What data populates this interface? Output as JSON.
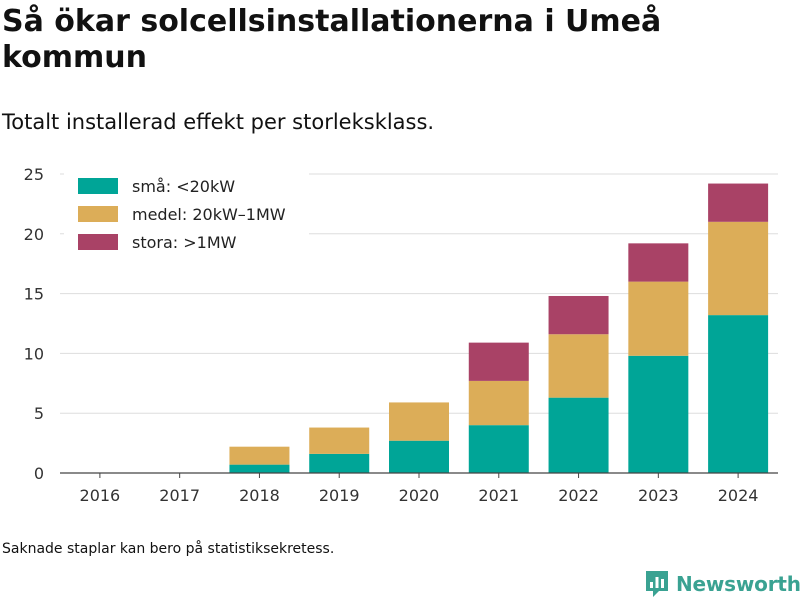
{
  "header": {
    "title": "Så ökar solcellsinstallationerna i Umeå kommun",
    "subtitle": "Totalt installerad effekt per storleksklass."
  },
  "footer": {
    "note": "Saknade staplar kan bero på statistiksekretess.",
    "brand": "Newsworthy",
    "brand_color": "#3aa292",
    "brand_icon": "bar-chart-logo-icon"
  },
  "chart_data": {
    "type": "bar",
    "stacked": true,
    "categories": [
      "2016",
      "2017",
      "2018",
      "2019",
      "2020",
      "2021",
      "2022",
      "2023",
      "2024"
    ],
    "series": [
      {
        "name": "små: <20kW",
        "color": "#00a597",
        "values": [
          0,
          0,
          0.7,
          1.6,
          2.7,
          4.0,
          6.3,
          9.8,
          13.2
        ]
      },
      {
        "name": "medel: 20kW–1MW",
        "color": "#dcad58",
        "values": [
          0,
          0,
          1.5,
          2.2,
          3.2,
          3.7,
          5.3,
          6.2,
          7.8
        ]
      },
      {
        "name": "stora: >1MW",
        "color": "#a94266",
        "values": [
          0,
          0,
          0,
          0,
          0,
          3.2,
          3.2,
          3.2,
          3.2
        ]
      }
    ],
    "yticks": [
      0,
      5,
      10,
      15,
      20,
      25
    ],
    "ylim": [
      0,
      25.5
    ],
    "grid": true,
    "legend_position": "top-left"
  }
}
